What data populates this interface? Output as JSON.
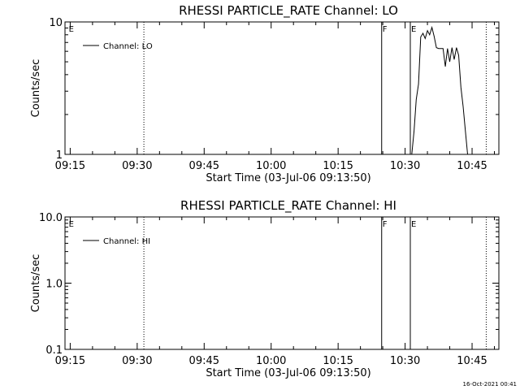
{
  "chart_data": [
    {
      "type": "line",
      "title": "RHESSI PARTICLE_RATE Channel: LO",
      "xlabel": "Start Time (03-Jul-06 09:13:50)",
      "ylabel": "Counts/sec",
      "x_tick_labels": [
        "09:15",
        "09:30",
        "09:45",
        "10:00",
        "10:15",
        "10:30",
        "10:45"
      ],
      "y_tick_labels": [
        "1",
        "10"
      ],
      "xlim": [
        "09:13:50",
        "10:51:00"
      ],
      "ylim": [
        1,
        10
      ],
      "yscale": "log",
      "legend_placement": "top-left",
      "series": [
        {
          "name": "Channel: LO",
          "x": [
            "10:31:30",
            "10:32:00",
            "10:32:30",
            "10:33:00",
            "10:33:30",
            "10:34:00",
            "10:34:30",
            "10:35:00",
            "10:35:30",
            "10:36:00",
            "10:36:30",
            "10:37:00",
            "10:37:30",
            "10:38:00",
            "10:38:30",
            "10:39:00",
            "10:39:30",
            "10:40:00",
            "10:40:30",
            "10:41:00",
            "10:41:30",
            "10:42:00",
            "10:42:30",
            "10:43:00",
            "10:43:30",
            "10:44:00"
          ],
          "values": [
            1.0,
            1.5,
            2.6,
            3.4,
            7.7,
            8.2,
            7.5,
            8.6,
            8.0,
            9.1,
            7.8,
            6.4,
            6.3,
            6.3,
            6.3,
            4.6,
            6.3,
            5.0,
            6.4,
            5.2,
            6.4,
            5.6,
            3.2,
            2.3,
            1.5,
            1.0
          ]
        }
      ],
      "vertical_markers": [
        {
          "time": "09:14:30",
          "label": "E",
          "style": "label-only"
        },
        {
          "time": "09:31:30",
          "label": "",
          "style": "dotted"
        },
        {
          "time": "10:24:45",
          "label": "F",
          "style": "solid"
        },
        {
          "time": "10:31:10",
          "label": "E",
          "style": "solid"
        },
        {
          "time": "10:48:10",
          "label": "",
          "style": "dotted"
        }
      ]
    },
    {
      "type": "line",
      "title": "RHESSI PARTICLE_RATE Channel: HI",
      "xlabel": "Start Time (03-Jul-06 09:13:50)",
      "ylabel": "Counts/sec",
      "x_tick_labels": [
        "09:15",
        "09:30",
        "09:45",
        "10:00",
        "10:15",
        "10:30",
        "10:45"
      ],
      "y_tick_labels": [
        "0.1",
        "1.0",
        "10.0"
      ],
      "xlim": [
        "09:13:50",
        "10:51:00"
      ],
      "ylim": [
        0.1,
        10
      ],
      "yscale": "log",
      "legend_placement": "top-left",
      "series": [
        {
          "name": "Channel: HI",
          "x": [],
          "values": []
        }
      ],
      "vertical_markers": [
        {
          "time": "09:14:30",
          "label": "E",
          "style": "label-only"
        },
        {
          "time": "09:31:30",
          "label": "",
          "style": "dotted"
        },
        {
          "time": "10:24:45",
          "label": "F",
          "style": "solid"
        },
        {
          "time": "10:31:10",
          "label": "E",
          "style": "solid"
        },
        {
          "time": "10:48:10",
          "label": "",
          "style": "dotted"
        }
      ]
    }
  ],
  "footer": {
    "timestamp": "16-Oct-2021 00:41"
  }
}
